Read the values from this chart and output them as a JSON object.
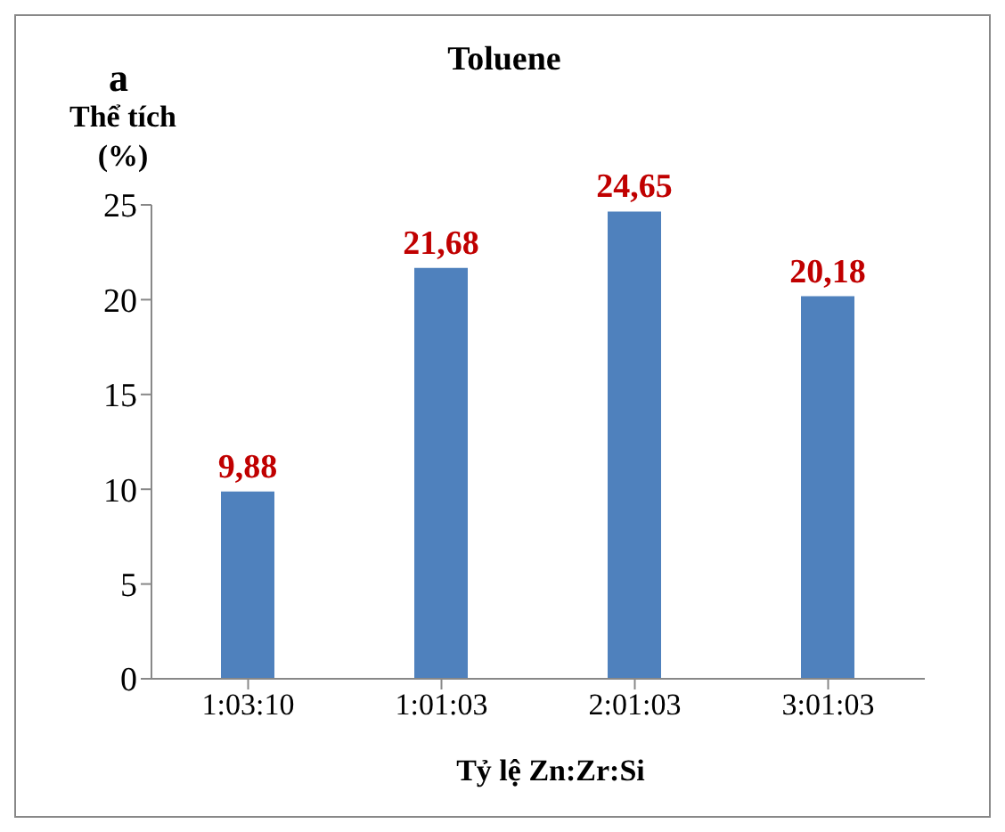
{
  "chart_data": {
    "type": "bar",
    "title": "Toluene",
    "annotations": [
      "a"
    ],
    "ylabel": "Thể tích\n(%)",
    "xlabel": "Tỷ lệ Zn:Zr:Si",
    "categories": [
      "1:03:10",
      "1:01:03",
      "2:01:03",
      "3:01:03"
    ],
    "values": [
      9.88,
      21.68,
      24.65,
      20.18
    ],
    "color": "#4f81bd",
    "value_labels": [
      "9,88",
      "21,68",
      "24,65",
      "20,18"
    ],
    "ylim": [
      0,
      25
    ],
    "yticks": [
      0,
      5,
      10,
      15,
      20,
      25
    ],
    "grid": false,
    "legend": false
  }
}
